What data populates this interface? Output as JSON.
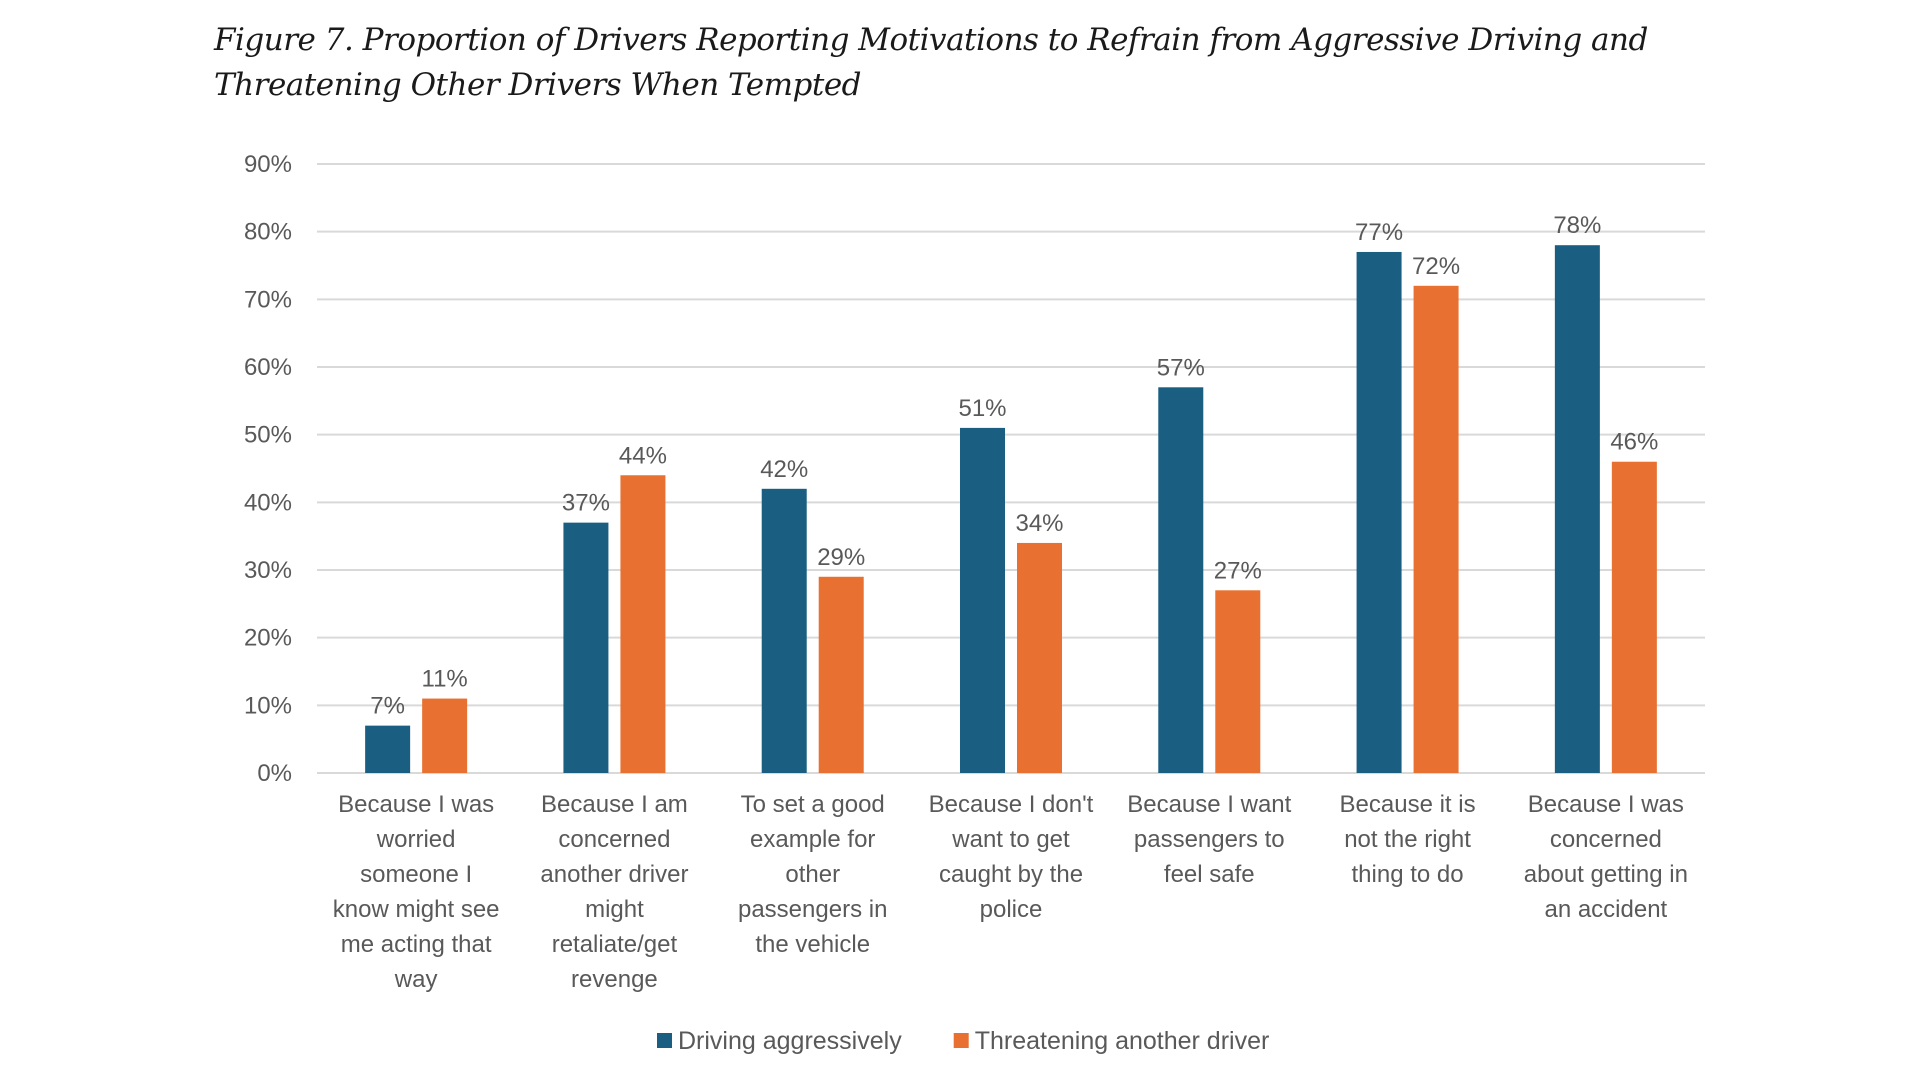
{
  "title": {
    "line1": "Figure 7. Proportion of Drivers Reporting Motivations to Refrain from Aggressive Driving and",
    "line2": "Threatening Other Drivers When Tempted"
  },
  "chart_data": {
    "type": "bar",
    "title": "Figure 7. Proportion of Drivers Reporting Motivations to Refrain from Aggressive Driving and Threatening Other Drivers When Tempted",
    "xlabel": "",
    "ylabel": "",
    "ylim": [
      0,
      90
    ],
    "yticks": [
      0,
      10,
      20,
      30,
      40,
      50,
      60,
      70,
      80,
      90
    ],
    "ytick_labels": [
      "0%",
      "10%",
      "20%",
      "30%",
      "40%",
      "50%",
      "60%",
      "70%",
      "80%",
      "90%"
    ],
    "grid": true,
    "legend_position": "bottom",
    "categories": [
      [
        "Because I was",
        "worried",
        "someone I",
        "know might see",
        "me acting that",
        "way"
      ],
      [
        "Because I am",
        "concerned",
        "another driver",
        "might",
        "retaliate/get",
        "revenge"
      ],
      [
        "To set a good",
        "example for",
        "other",
        "passengers in",
        "the vehicle"
      ],
      [
        "Because I don't",
        "want to get",
        "caught by the",
        "police"
      ],
      [
        "Because I want",
        "passengers to",
        "feel safe"
      ],
      [
        "Because it is",
        "not the right",
        "thing to do"
      ],
      [
        "Because I was",
        "concerned",
        "about getting in",
        "an accident"
      ]
    ],
    "series": [
      {
        "name": "Driving aggressively",
        "color": "#1a5f82",
        "values": [
          7,
          37,
          42,
          51,
          57,
          77,
          78
        ],
        "labels": [
          "7%",
          "37%",
          "42%",
          "51%",
          "57%",
          "77%",
          "78%"
        ]
      },
      {
        "name": "Threatening another driver",
        "color": "#e87131",
        "values": [
          11,
          44,
          29,
          34,
          27,
          72,
          46
        ],
        "labels": [
          "11%",
          "44%",
          "29%",
          "34%",
          "27%",
          "72%",
          "46%"
        ]
      }
    ]
  }
}
